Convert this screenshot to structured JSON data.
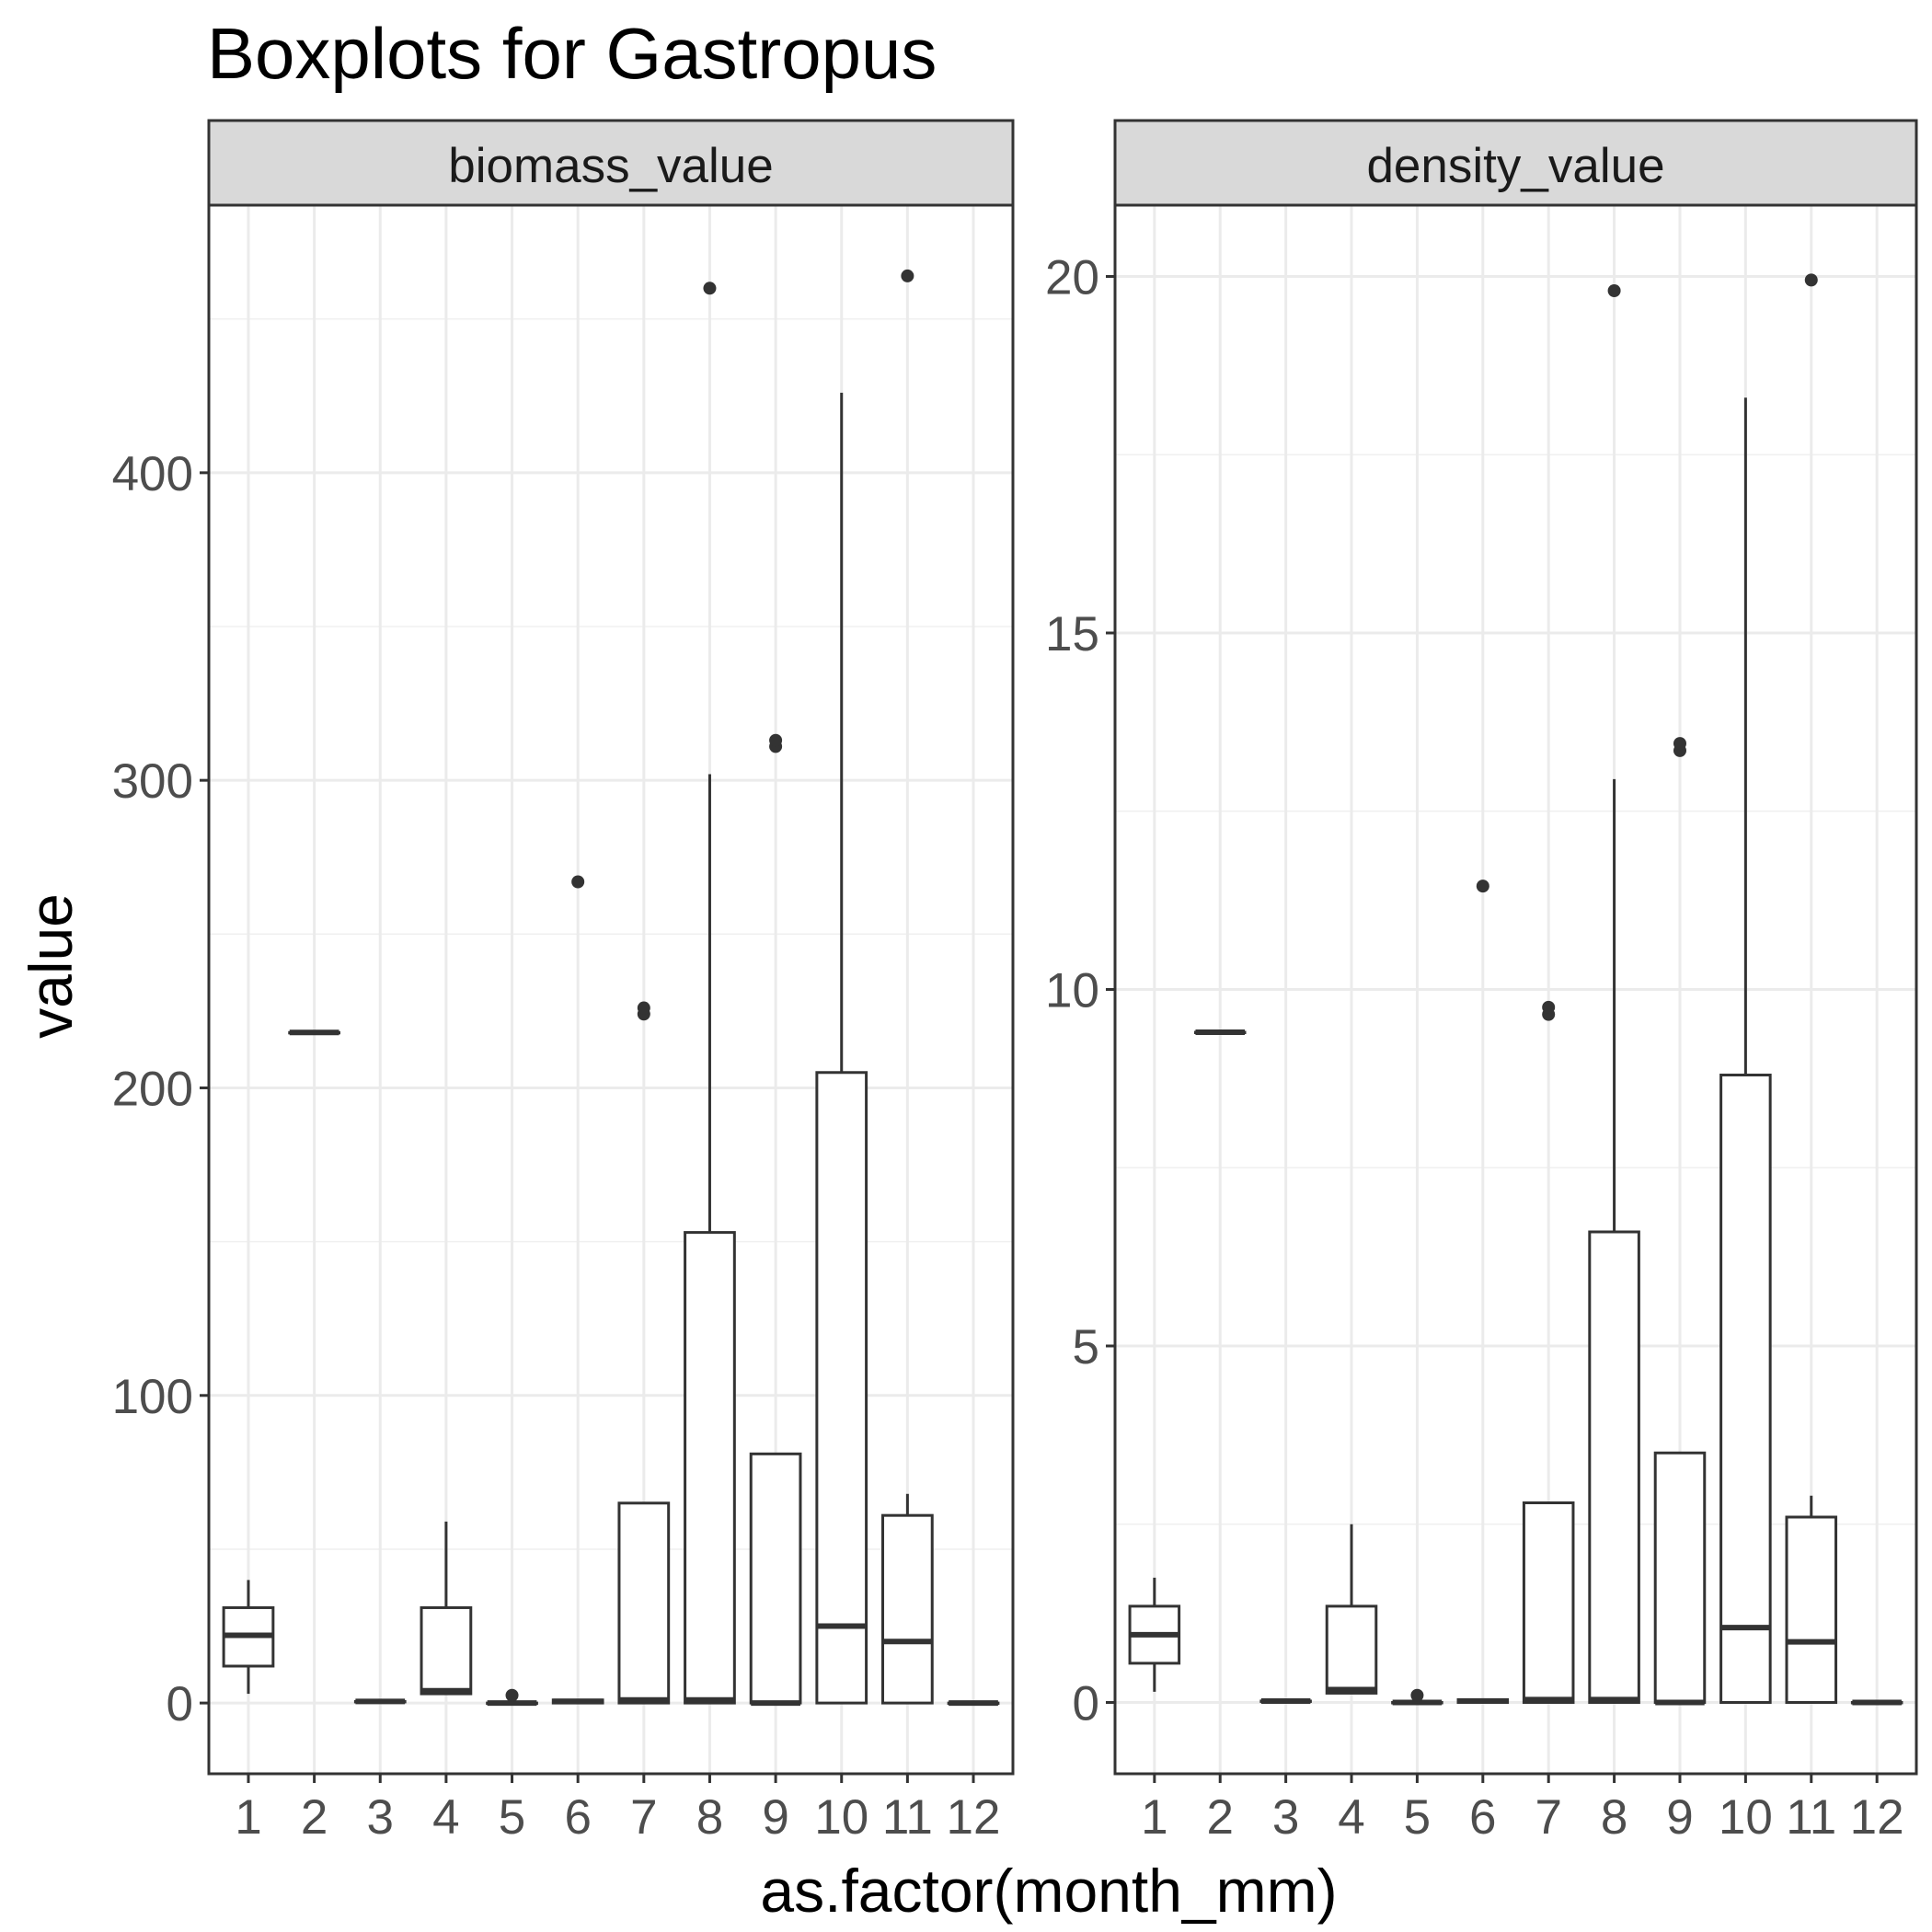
{
  "chart_data": {
    "type": "boxplot",
    "title": "Boxplots for Gastropus",
    "xlabel": "as.factor(month_mm)",
    "ylabel": "value",
    "categories": [
      "1",
      "2",
      "3",
      "4",
      "5",
      "6",
      "7",
      "8",
      "9",
      "10",
      "11",
      "12"
    ],
    "grid": true,
    "panels": [
      {
        "strip": "biomass_value",
        "ylim": [
          -23,
          487
        ],
        "yticks": [
          0,
          100,
          200,
          300,
          400
        ],
        "boxes": [
          {
            "cat": "1",
            "lower": 3,
            "q1": 12,
            "median": 22,
            "q3": 31,
            "upper": 40,
            "outliers": []
          },
          {
            "cat": "2",
            "lower": 218,
            "q1": 218,
            "median": 218,
            "q3": 218,
            "upper": 218,
            "outliers": []
          },
          {
            "cat": "3",
            "lower": 0.5,
            "q1": 0.5,
            "median": 0.5,
            "q3": 0.5,
            "upper": 0.5,
            "outliers": []
          },
          {
            "cat": "4",
            "lower": 3,
            "q1": 3,
            "median": 4,
            "q3": 31,
            "upper": 59,
            "outliers": []
          },
          {
            "cat": "5",
            "lower": 0,
            "q1": 0,
            "median": 0,
            "q3": 0,
            "upper": 0,
            "outliers": [
              2.5
            ]
          },
          {
            "cat": "6",
            "lower": 0,
            "q1": 0,
            "median": 0.5,
            "q3": 1,
            "upper": 1,
            "outliers": [
              267
            ]
          },
          {
            "cat": "7",
            "lower": 0,
            "q1": 0,
            "median": 1,
            "q3": 65,
            "upper": 65,
            "outliers": [
              224,
              226
            ]
          },
          {
            "cat": "8",
            "lower": 0,
            "q1": 0,
            "median": 1,
            "q3": 153,
            "upper": 302,
            "outliers": [
              460
            ]
          },
          {
            "cat": "9",
            "lower": 0,
            "q1": 0,
            "median": 0,
            "q3": 81,
            "upper": 81,
            "outliers": [
              311,
              313
            ]
          },
          {
            "cat": "10",
            "lower": 0,
            "q1": 0,
            "median": 25,
            "q3": 205,
            "upper": 426,
            "outliers": []
          },
          {
            "cat": "11",
            "lower": 0,
            "q1": 0,
            "median": 20,
            "q3": 61,
            "upper": 68,
            "outliers": [
              464
            ]
          },
          {
            "cat": "12",
            "lower": 0,
            "q1": 0,
            "median": 0,
            "q3": 0,
            "upper": 0,
            "outliers": []
          }
        ]
      },
      {
        "strip": "density_value",
        "ylim": [
          -1,
          21
        ],
        "yticks": [
          0,
          5,
          10,
          15,
          20
        ],
        "boxes": [
          {
            "cat": "1",
            "lower": 0.15,
            "q1": 0.55,
            "median": 0.95,
            "q3": 1.35,
            "upper": 1.75,
            "outliers": []
          },
          {
            "cat": "2",
            "lower": 9.4,
            "q1": 9.4,
            "median": 9.4,
            "q3": 9.4,
            "upper": 9.4,
            "outliers": []
          },
          {
            "cat": "3",
            "lower": 0.02,
            "q1": 0.02,
            "median": 0.02,
            "q3": 0.02,
            "upper": 0.02,
            "outliers": []
          },
          {
            "cat": "4",
            "lower": 0.13,
            "q1": 0.13,
            "median": 0.18,
            "q3": 1.35,
            "upper": 2.5,
            "outliers": []
          },
          {
            "cat": "5",
            "lower": 0,
            "q1": 0,
            "median": 0,
            "q3": 0,
            "upper": 0,
            "outliers": [
              0.1
            ]
          },
          {
            "cat": "6",
            "lower": 0,
            "q1": 0,
            "median": 0.02,
            "q3": 0.04,
            "upper": 0.04,
            "outliers": [
              11.45
            ]
          },
          {
            "cat": "7",
            "lower": 0,
            "q1": 0,
            "median": 0.04,
            "q3": 2.8,
            "upper": 2.8,
            "outliers": [
              9.65,
              9.75
            ]
          },
          {
            "cat": "8",
            "lower": 0,
            "q1": 0,
            "median": 0.04,
            "q3": 6.6,
            "upper": 12.95,
            "outliers": [
              19.8
            ]
          },
          {
            "cat": "9",
            "lower": 0,
            "q1": 0,
            "median": 0,
            "q3": 3.5,
            "upper": 3.5,
            "outliers": [
              13.35,
              13.45
            ]
          },
          {
            "cat": "10",
            "lower": 0,
            "q1": 0,
            "median": 1.05,
            "q3": 8.8,
            "upper": 18.3,
            "outliers": []
          },
          {
            "cat": "11",
            "lower": 0,
            "q1": 0,
            "median": 0.85,
            "q3": 2.6,
            "upper": 2.9,
            "outliers": [
              19.95
            ]
          },
          {
            "cat": "12",
            "lower": 0,
            "q1": 0,
            "median": 0,
            "q3": 0,
            "upper": 0,
            "outliers": []
          }
        ]
      }
    ]
  }
}
